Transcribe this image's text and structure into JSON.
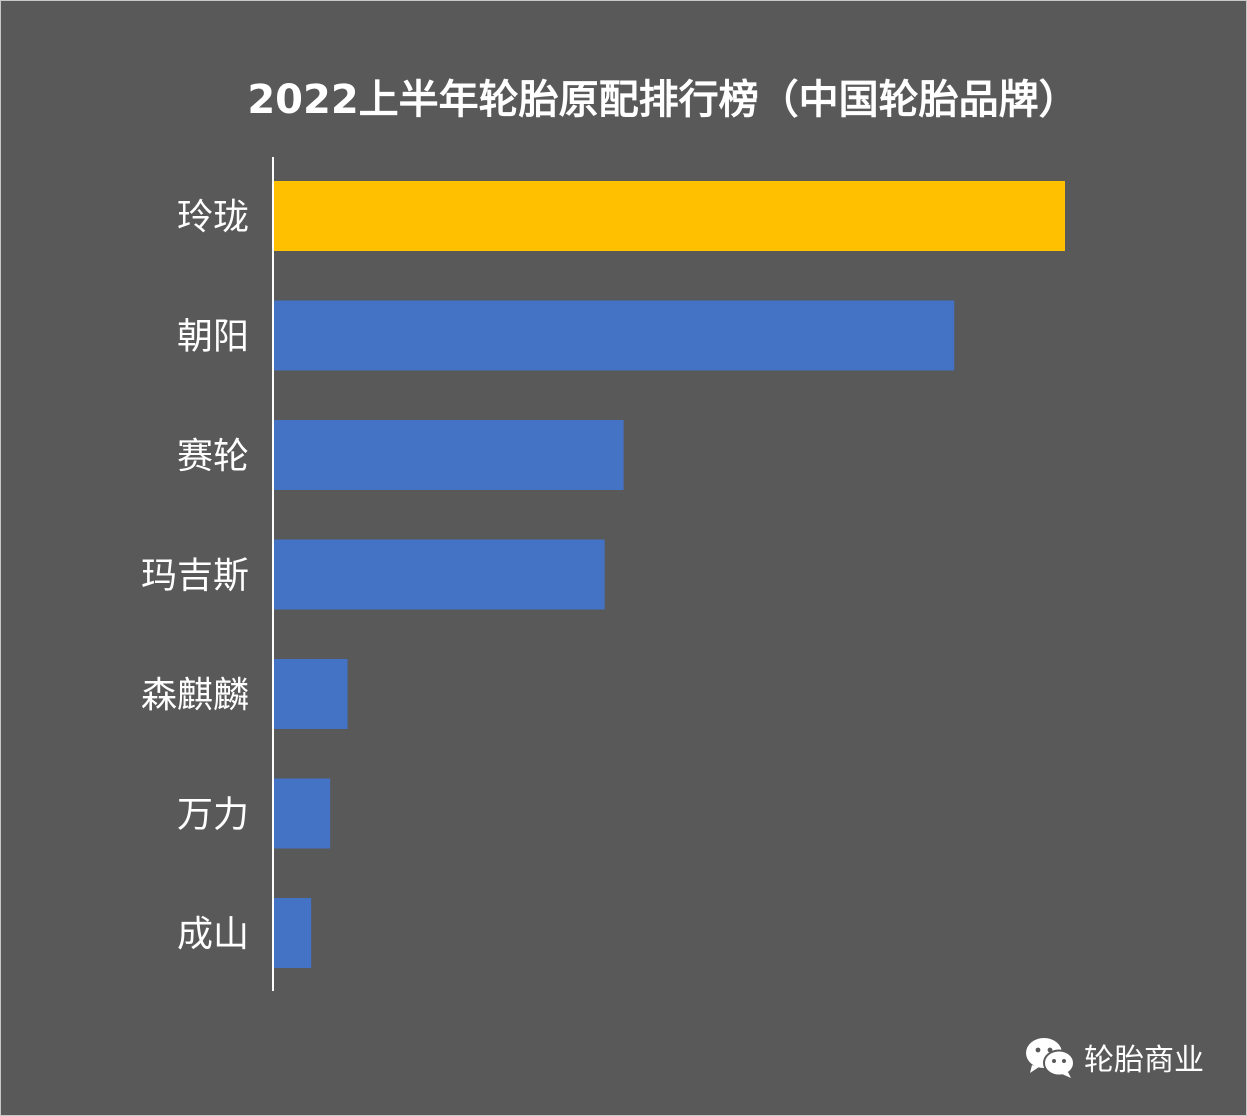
{
  "chart_data": {
    "type": "bar",
    "orientation": "horizontal",
    "title": "2022上半年轮胎原配排行榜（中国轮胎品牌）",
    "categories": [
      "玲珑",
      "朝阳",
      "赛轮",
      "玛吉斯",
      "森麒麟",
      "万力",
      "成山"
    ],
    "values": [
      100,
      86,
      44.2,
      41.8,
      9.3,
      7.1,
      4.7
    ],
    "highlight_index": 0,
    "colors": {
      "highlight": "#FFC000",
      "default": "#4472C4",
      "background": "#595959",
      "text": "#FFFFFF",
      "axis": "#FFFFFF"
    },
    "xlim": [
      0,
      100
    ],
    "grid": false,
    "legend": "none"
  },
  "watermark": {
    "icon": "wechat-icon",
    "text": "轮胎商业"
  }
}
